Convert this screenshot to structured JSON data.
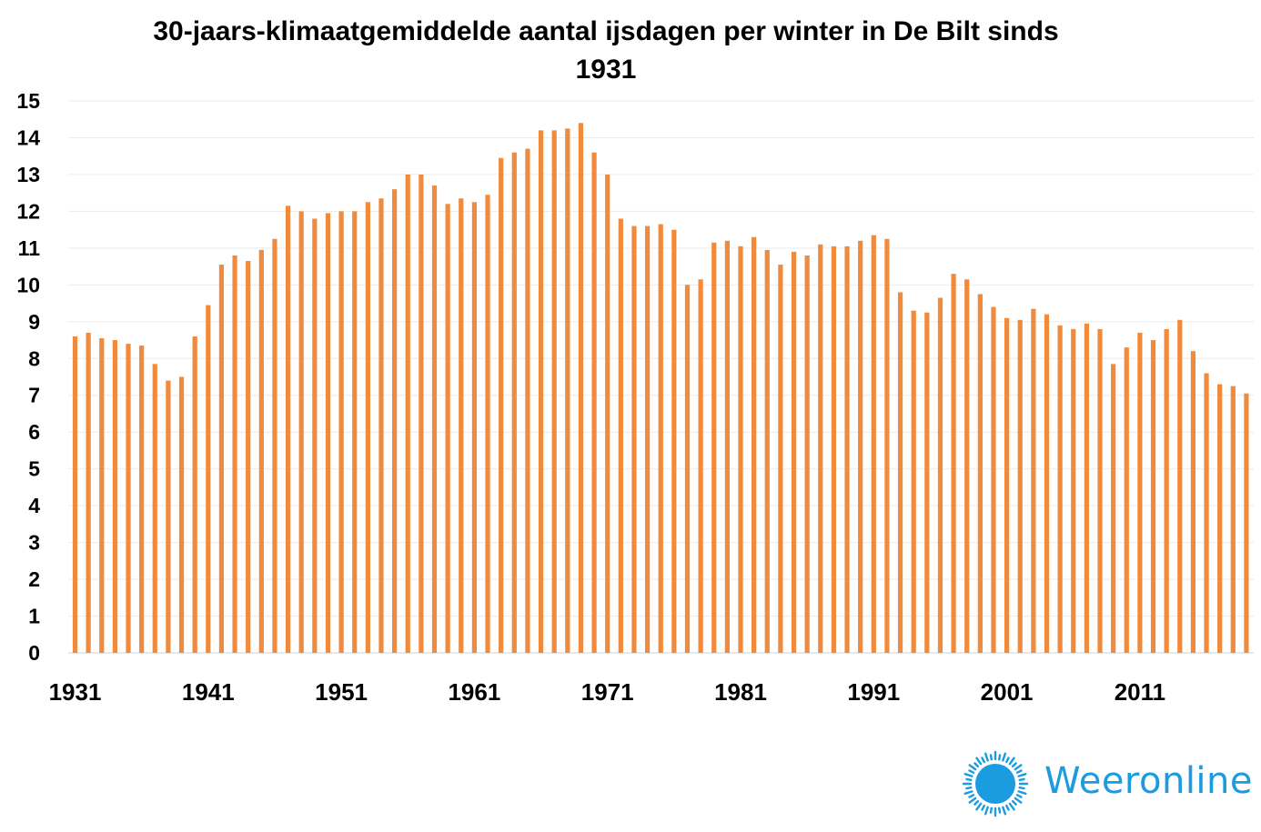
{
  "chart_data": {
    "type": "bar",
    "title": "30-jaars-klimaatgemiddelde aantal ijsdagen per winter in De Bilt sinds 1931",
    "title_lines": [
      "30-jaars-klimaatgemiddelde  aantal ijsdagen per winter in De Bilt sinds",
      "1931"
    ],
    "xlabel": "",
    "ylabel": "",
    "ylim": [
      0,
      15
    ],
    "yticks": [
      "0",
      "1",
      "2",
      "3",
      "4",
      "5",
      "6",
      "7",
      "8",
      "9",
      "10",
      "11",
      "12",
      "13",
      "14",
      "15"
    ],
    "x_tick_labels": [
      "1931",
      "1941",
      "1951",
      "1961",
      "1971",
      "1981",
      "1991",
      "2001",
      "2011"
    ],
    "grid": true,
    "bar_color": "#f08a3c",
    "start_year": 1931,
    "values": [
      8.6,
      8.7,
      8.55,
      8.5,
      8.4,
      8.35,
      7.85,
      7.4,
      7.5,
      8.6,
      9.45,
      10.55,
      10.8,
      10.65,
      10.95,
      11.25,
      12.15,
      12.0,
      11.8,
      11.95,
      12.0,
      12.0,
      12.25,
      12.35,
      12.6,
      13.0,
      13.0,
      12.7,
      12.2,
      12.35,
      12.25,
      12.45,
      13.45,
      13.6,
      13.7,
      14.2,
      14.2,
      14.25,
      14.4,
      13.6,
      13.0,
      11.8,
      11.6,
      11.6,
      11.65,
      11.5,
      10.0,
      10.15,
      11.15,
      11.2,
      11.05,
      11.3,
      10.95,
      10.55,
      10.9,
      10.8,
      11.1,
      11.05,
      11.05,
      11.2,
      11.35,
      11.25,
      9.8,
      9.3,
      9.25,
      9.65,
      10.3,
      10.15,
      9.75,
      9.4,
      9.1,
      9.05,
      9.35,
      9.2,
      8.9,
      8.8,
      8.95,
      8.8,
      7.85,
      8.3,
      8.7,
      8.5,
      8.8,
      9.05,
      8.2,
      7.6,
      7.3,
      7.25,
      7.05
    ]
  },
  "logo": {
    "icon": "sun-icon",
    "brand": "Weeronline",
    "color": "#1b9be0"
  }
}
